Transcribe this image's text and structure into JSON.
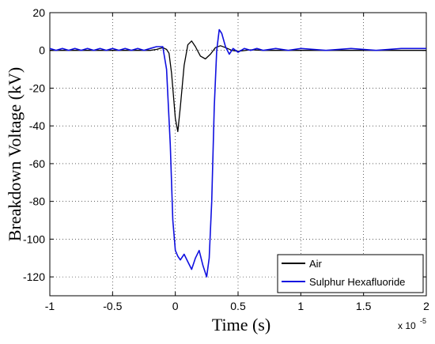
{
  "chart_data": {
    "type": "line",
    "xlabel": "Time (s)",
    "ylabel": "Breakdown Voltage (kV)",
    "x_exponent_label": "x 10",
    "x_exponent_power": "-5",
    "xlim": [
      -1,
      2
    ],
    "ylim": [
      -130,
      20
    ],
    "xticks": [
      "-1",
      "-0.5",
      "0",
      "0.5",
      "1",
      "1.5",
      "2"
    ],
    "yticks": [
      "20",
      "0",
      "-20",
      "-40",
      "-60",
      "-80",
      "-100",
      "-120"
    ],
    "grid": true,
    "legend_position": "bottom-right",
    "series": [
      {
        "name": "Air",
        "color": "#000000",
        "x": [
          -1,
          -0.9,
          -0.8,
          -0.7,
          -0.6,
          -0.5,
          -0.4,
          -0.3,
          -0.2,
          -0.15,
          -0.1,
          -0.07,
          -0.05,
          -0.03,
          0.0,
          0.02,
          0.04,
          0.07,
          0.1,
          0.13,
          0.16,
          0.2,
          0.24,
          0.28,
          0.32,
          0.36,
          0.4,
          0.45,
          0.5,
          0.6,
          0.7,
          0.8,
          1.0,
          1.5,
          2.0
        ],
        "y": [
          0,
          0,
          0,
          0,
          0,
          0,
          0,
          0,
          0,
          0.5,
          1.5,
          0.5,
          -1.5,
          -12,
          -36,
          -43,
          -30,
          -8,
          3,
          5,
          2,
          -3,
          -4.5,
          -2,
          1.5,
          2.5,
          1.5,
          0,
          -0.5,
          0.3,
          0,
          0,
          0,
          0,
          0
        ]
      },
      {
        "name": "Sulphur Hexafluoride",
        "color": "#1010e0",
        "x": [
          -1,
          -0.95,
          -0.9,
          -0.85,
          -0.8,
          -0.75,
          -0.7,
          -0.65,
          -0.6,
          -0.55,
          -0.5,
          -0.45,
          -0.4,
          -0.35,
          -0.3,
          -0.25,
          -0.2,
          -0.15,
          -0.1,
          -0.07,
          -0.04,
          -0.02,
          0.0,
          0.02,
          0.04,
          0.07,
          0.1,
          0.13,
          0.16,
          0.19,
          0.22,
          0.25,
          0.27,
          0.29,
          0.31,
          0.33,
          0.35,
          0.37,
          0.4,
          0.43,
          0.46,
          0.5,
          0.55,
          0.6,
          0.65,
          0.7,
          0.8,
          0.9,
          1.0,
          1.2,
          1.4,
          1.6,
          1.8,
          2.0
        ],
        "y": [
          1,
          0,
          1,
          0,
          1,
          0,
          1,
          0,
          1,
          0,
          1,
          0,
          1,
          0,
          1,
          0,
          1,
          2,
          2,
          -10,
          -50,
          -90,
          -106,
          -109,
          -111,
          -108,
          -112,
          -116,
          -110,
          -106,
          -114,
          -120,
          -110,
          -80,
          -30,
          0,
          11,
          9,
          2,
          -2,
          1,
          -1,
          1,
          0,
          1,
          0,
          1,
          0,
          1,
          0,
          1,
          0,
          1,
          1
        ]
      }
    ]
  }
}
